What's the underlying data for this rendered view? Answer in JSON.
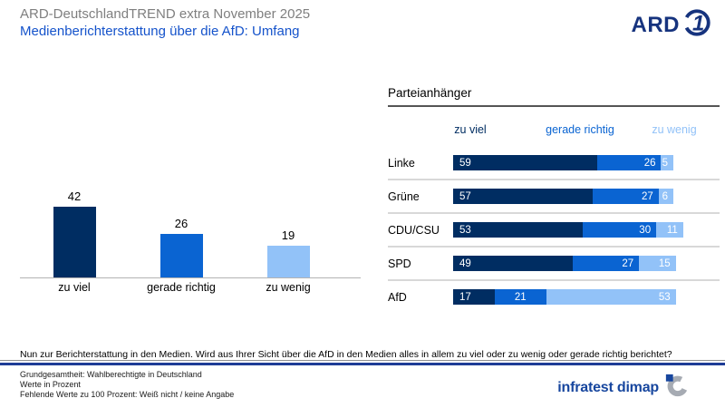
{
  "header": {
    "pretitle": "ARD-DeutschlandTREND extra November 2025",
    "title": "Medienberichterstattung über die AfD: Umfang"
  },
  "logos": {
    "ard_text": "ARD",
    "brand_text": "infratest dimap"
  },
  "colors": {
    "navy": "#002d62",
    "mid_blue": "#0a64d2",
    "light_blue": "#92c2f8",
    "title_blue": "#1553cb",
    "pretitle_gray": "#7f7f7f",
    "divider_blue": "#1e3c96"
  },
  "chart_data": [
    {
      "type": "bar",
      "orientation": "vertical",
      "categories": [
        "zu viel",
        "gerade richtig",
        "zu wenig"
      ],
      "values": [
        42,
        26,
        19
      ],
      "unit": "percent",
      "ylim": [
        0,
        50
      ],
      "grid": false,
      "bar_colors": [
        "#002d62",
        "#0a64d2",
        "#92c2f8"
      ]
    },
    {
      "type": "bar",
      "orientation": "horizontal-stacked",
      "title": "Parteianhänger",
      "legend": [
        "zu viel",
        "gerade richtig",
        "zu wenig"
      ],
      "legend_position": "top",
      "categories": [
        "Linke",
        "Grüne",
        "CDU/CSU",
        "SPD",
        "AfD"
      ],
      "series": [
        {
          "name": "zu viel",
          "values": [
            59,
            57,
            53,
            49,
            17
          ]
        },
        {
          "name": "gerade richtig",
          "values": [
            26,
            27,
            30,
            27,
            21
          ]
        },
        {
          "name": "zu wenig",
          "values": [
            5,
            6,
            11,
            15,
            53
          ]
        }
      ],
      "xlim": [
        0,
        100
      ],
      "unit": "percent"
    }
  ],
  "question": "Nun zur Berichterstattung in den Medien. Wird aus Ihrer Sicht über die AfD in den Medien alles in allem zu viel oder zu wenig oder gerade richtig berichtet?",
  "footer": {
    "lines": [
      "Grundgesamtheit: Wahlberechtigte in Deutschland",
      "Werte in Prozent",
      "Fehlende Werte zu 100 Prozent: Weiß nicht / keine Angabe"
    ]
  }
}
